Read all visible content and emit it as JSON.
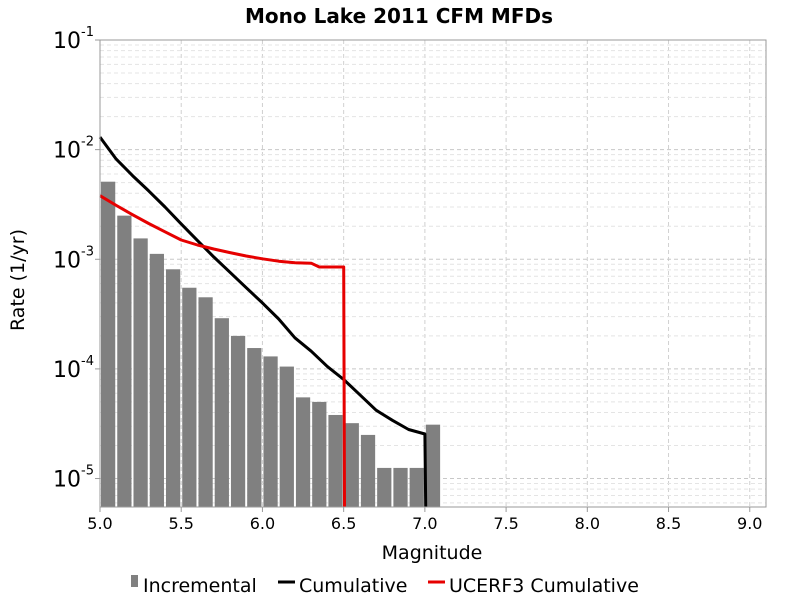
{
  "chart_data": {
    "type": "bar+line",
    "title": "Mono Lake 2011 CFM MFDs",
    "xlabel": "Magnitude",
    "ylabel": "Rate (1/yr)",
    "xlim": [
      5.0,
      9.1
    ],
    "ylim": [
      5.5e-06,
      0.1
    ],
    "y_scale": "log",
    "grid": true,
    "legend_position": "bottom",
    "x_ticks": [
      "5.0",
      "5.5",
      "6.0",
      "6.5",
      "7.0",
      "7.5",
      "8.0",
      "8.5",
      "9.0"
    ],
    "y_ticks": [
      {
        "value": 1e-05,
        "base": "10",
        "exp": "-5"
      },
      {
        "value": 0.0001,
        "base": "10",
        "exp": "-4"
      },
      {
        "value": 0.001,
        "base": "10",
        "exp": "-3"
      },
      {
        "value": 0.01,
        "base": "10",
        "exp": "-2"
      },
      {
        "value": 0.1,
        "base": "10",
        "exp": "-1"
      }
    ],
    "colors": {
      "incremental": "#808080",
      "cumulative": "#000000",
      "ucerf3": "#e60000",
      "grid": "#d0d0d0"
    },
    "series": [
      {
        "name": "Incremental",
        "kind": "bar",
        "bar_width": 0.1,
        "x": [
          5.05,
          5.15,
          5.25,
          5.35,
          5.45,
          5.55,
          5.65,
          5.75,
          5.85,
          5.95,
          6.05,
          6.15,
          6.25,
          6.35,
          6.45,
          6.55,
          6.65,
          6.75,
          6.85,
          6.95,
          7.05
        ],
        "values": [
          0.0051,
          0.0025,
          0.00155,
          0.00112,
          0.00081,
          0.00055,
          0.00045,
          0.00029,
          0.0002,
          0.000155,
          0.00013,
          0.000105,
          5.5e-05,
          5e-05,
          3.8e-05,
          3.2e-05,
          2.5e-05,
          1.25e-05,
          1.25e-05,
          1.25e-05,
          3.1e-05
        ]
      },
      {
        "name": "Cumulative",
        "kind": "line",
        "x": [
          5.0,
          5.1,
          5.2,
          5.3,
          5.4,
          5.5,
          5.6,
          5.7,
          5.8,
          5.9,
          6.0,
          6.1,
          6.2,
          6.3,
          6.4,
          6.5,
          6.6,
          6.7,
          6.8,
          6.9,
          7.0,
          7.005
        ],
        "values": [
          0.013,
          0.0082,
          0.0058,
          0.0042,
          0.003,
          0.0021,
          0.00148,
          0.00105,
          0.00076,
          0.00055,
          0.0004,
          0.000285,
          0.000192,
          0.000145,
          0.000105,
          8e-05,
          5.8e-05,
          4.2e-05,
          3.4e-05,
          2.8e-05,
          2.55e-05,
          5.5e-06
        ]
      },
      {
        "name": "UCERF3 Cumulative",
        "kind": "line",
        "x": [
          5.0,
          5.1,
          5.2,
          5.3,
          5.4,
          5.5,
          5.6,
          5.7,
          5.8,
          5.9,
          6.0,
          6.1,
          6.2,
          6.3,
          6.35,
          6.4,
          6.45,
          6.5,
          6.505
        ],
        "values": [
          0.0038,
          0.0031,
          0.00255,
          0.00212,
          0.00178,
          0.0015,
          0.00135,
          0.00124,
          0.00115,
          0.00107,
          0.00101,
          0.00096,
          0.00093,
          0.00092,
          0.00085,
          0.00085,
          0.00085,
          0.00085,
          5.5e-06
        ]
      }
    ]
  }
}
